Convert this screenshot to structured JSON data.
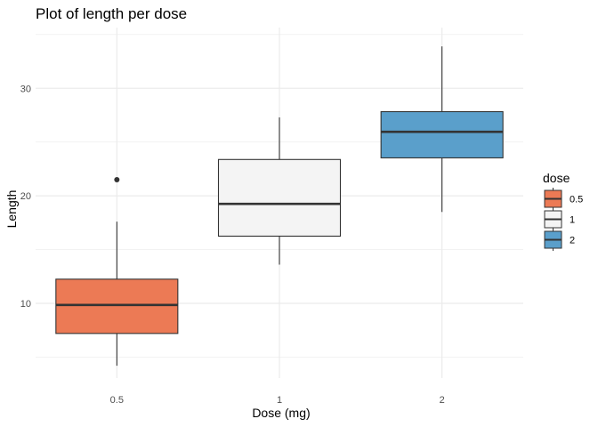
{
  "chart_data": {
    "type": "boxplot",
    "title": "Plot of length  per dose",
    "xlabel": "Dose (mg)",
    "ylabel": "Length",
    "categories": [
      "0.5",
      "1",
      "2"
    ],
    "ylim": [
      3.05,
      35.65
    ],
    "yticks": [
      10,
      20,
      30
    ],
    "grid": true,
    "legend": {
      "title": "dose",
      "position": "right",
      "entries": [
        "0.5",
        "1",
        "2"
      ]
    },
    "boxes": [
      {
        "category": "0.5",
        "min": 4.2,
        "q1": 7.2,
        "median": 9.85,
        "q3": 12.25,
        "max": 17.6,
        "outliers": [
          21.5
        ],
        "color": "#EC7A55"
      },
      {
        "category": "1",
        "min": 13.6,
        "q1": 16.25,
        "median": 19.25,
        "q3": 23.38,
        "max": 27.3,
        "outliers": [],
        "color": "#F4F4F4"
      },
      {
        "category": "2",
        "min": 18.5,
        "q1": 23.53,
        "median": 25.95,
        "q3": 27.83,
        "max": 33.9,
        "outliers": [],
        "color": "#5A9FCB"
      }
    ]
  }
}
